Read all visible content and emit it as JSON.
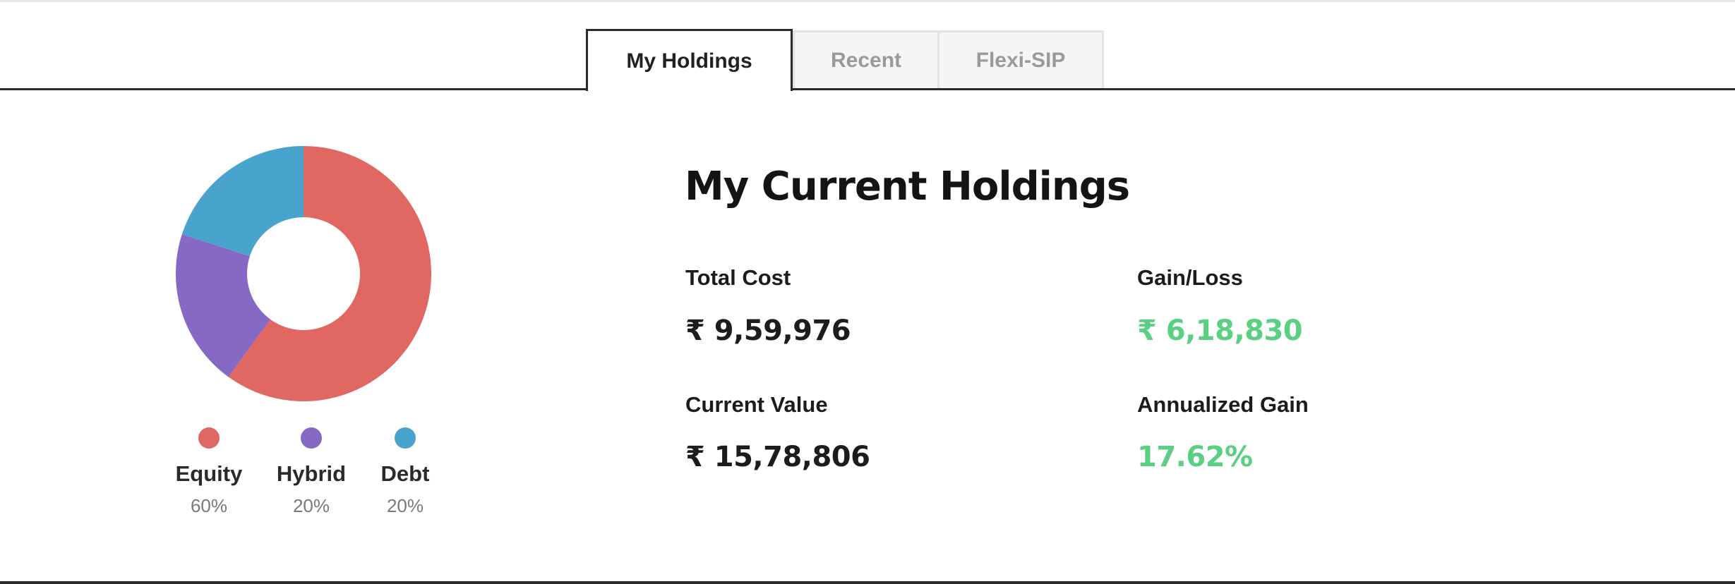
{
  "tabs": [
    {
      "label": "My Holdings",
      "active": true
    },
    {
      "label": "Recent",
      "active": false
    },
    {
      "label": "Flexi-SIP",
      "active": false
    }
  ],
  "holdings": {
    "title": "My Current Holdings",
    "total_cost": {
      "label": "Total Cost",
      "value": "₹ 9,59,976"
    },
    "gain_loss": {
      "label": "Gain/Loss",
      "value": "₹ 6,18,830"
    },
    "current_value": {
      "label": "Current Value",
      "value": "₹ 15,78,806"
    },
    "annualized_gain": {
      "label": "Annualized Gain",
      "value": "17.62%"
    }
  },
  "colors": {
    "equity": "#e06762",
    "hybrid": "#8668c5",
    "debt": "#48a4cc",
    "positive": "#5bcf82"
  },
  "chart_data": {
    "type": "pie",
    "categories": [
      "Equity",
      "Hybrid",
      "Debt"
    ],
    "values": [
      60,
      20,
      20
    ],
    "labels": [
      "60%",
      "20%",
      "20%"
    ],
    "donut": true,
    "legend_placement": "bottom"
  }
}
